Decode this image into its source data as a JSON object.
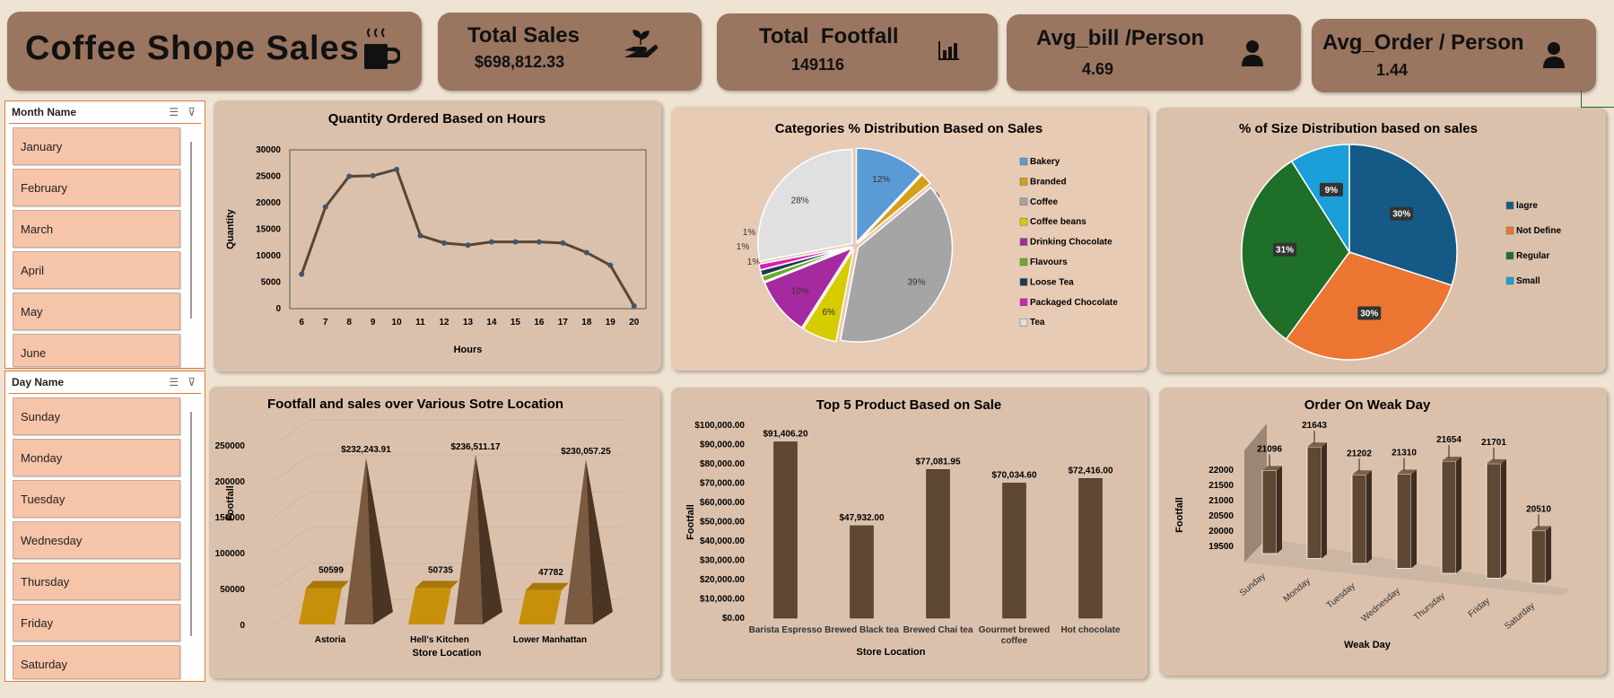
{
  "kpis": {
    "title": "Coffee Shope Sales",
    "total_sales_label": "Total Sales",
    "total_sales_value": "$698,812.33",
    "footfall_label": "Total  Footfall",
    "footfall_value": "149116",
    "avg_bill_label": "Avg_bill /Person",
    "avg_bill_value": "4.69",
    "avg_order_label": "Avg_Order / Person",
    "avg_order_value": "1.44"
  },
  "icons": {
    "title": "coffee-cup-icon",
    "sales": "hand-plant-icon",
    "footfall": "bar-chart-icon",
    "person": "person-icon"
  },
  "slicers": {
    "month": {
      "title": "Month Name",
      "items": [
        "January",
        "February",
        "March",
        "April",
        "May",
        "June"
      ]
    },
    "day": {
      "title": "Day Name",
      "items": [
        "Sunday",
        "Monday",
        "Tuesday",
        "Wednesday",
        "Thursday",
        "Friday",
        "Saturday"
      ]
    }
  },
  "colors": {
    "brown": "#5e4733",
    "gold": "#c8900a",
    "panel": "#e8cbb5"
  },
  "chart_data": [
    {
      "id": "hours",
      "type": "line",
      "title": "Quantity Ordered Based on Hours",
      "xlabel": "Hours",
      "ylabel": "Quantity",
      "x": [
        6,
        7,
        8,
        9,
        10,
        11,
        12,
        13,
        14,
        15,
        16,
        17,
        18,
        19,
        20
      ],
      "values": [
        6500,
        19200,
        25000,
        25100,
        26300,
        13800,
        12400,
        12000,
        12600,
        12600,
        12600,
        12400,
        10600,
        8200,
        500
      ],
      "ylim": [
        0,
        30000
      ],
      "yticks": [
        0,
        5000,
        10000,
        15000,
        20000,
        25000,
        30000
      ],
      "legend": "none"
    },
    {
      "id": "categories",
      "type": "pie",
      "title": "Categories % Distribution Based on Sales",
      "labels": [
        "Bakery",
        "Branded",
        "Coffee",
        "Coffee beans",
        "Drinking Chocolate",
        "Flavours",
        "Loose Tea",
        "Packaged Chocolate",
        "Tea"
      ],
      "values": [
        12,
        2,
        39,
        6,
        10,
        1,
        1,
        1,
        28
      ],
      "data_labels": [
        "12%",
        "2%",
        "39%",
        "6%",
        "10%",
        "1%",
        "1%",
        "1%",
        "28%"
      ],
      "colors": [
        "#5b9bd5",
        "#d4a017",
        "#a5a5a5",
        "#d6cc00",
        "#a52aa0",
        "#6aaa2a",
        "#1f3a4d",
        "#d61fb5",
        "#e0e0e0"
      ],
      "legend": "right"
    },
    {
      "id": "size",
      "type": "pie",
      "title": "% of Size Distribution based on sales",
      "labels": [
        "lagre",
        "Not Define",
        "Regular",
        "Small"
      ],
      "values": [
        30,
        30,
        31,
        9
      ],
      "data_labels": [
        "30%",
        "30%",
        "31%",
        "9%"
      ],
      "colors": [
        "#155a86",
        "#ec7532",
        "#1e6f27",
        "#1a9fd8"
      ],
      "legend": "right"
    },
    {
      "id": "store",
      "type": "bar",
      "title": "Footfall and sales over Various Sotre Location",
      "xlabel": "Store Location",
      "ylabel": "Footfall",
      "categories": [
        "Astoria",
        "Hell's Kitchen",
        "Lower Manhattan"
      ],
      "series": [
        {
          "values": [
            50599,
            50735,
            47782
          ],
          "labels": [
            "50599",
            "50735",
            "47782"
          ]
        },
        {
          "values": [
            232243.91,
            236511.17,
            230057.25
          ],
          "labels": [
            "$232,243.91",
            "$236,511.17",
            "$230,057.25"
          ]
        }
      ],
      "ylim": [
        0,
        250000
      ],
      "yticks": [
        0,
        50000,
        100000,
        150000,
        200000,
        250000
      ]
    },
    {
      "id": "products",
      "type": "bar",
      "title": "Top 5 Product Based on Sale",
      "xlabel": "Store Location",
      "ylabel": "Footfall",
      "categories": [
        [
          "Barista Espresso"
        ],
        [
          "Brewed Black tea"
        ],
        [
          "Brewed Chai tea"
        ],
        [
          "Gourmet brewed",
          "coffee"
        ],
        [
          "Hot chocolate"
        ]
      ],
      "values": [
        91406.2,
        47932.0,
        77081.95,
        70034.6,
        72416.0
      ],
      "labels": [
        "$91,406.20",
        "$47,932.00",
        "$77,081.95",
        "$70,034.60",
        "$72,416.00"
      ],
      "ylim": [
        0,
        100000
      ],
      "yticks": [
        "$0.00",
        "$10,000.00",
        "$20,000.00",
        "$30,000.00",
        "$40,000.00",
        "$50,000.00",
        "$60,000.00",
        "$70,000.00",
        "$80,000.00",
        "$90,000.00",
        "$100,000.00"
      ]
    },
    {
      "id": "weekday",
      "type": "bar",
      "title": "Order On Weak Day",
      "xlabel": "Weak Day",
      "ylabel": "Footfall",
      "categories": [
        "Sunday",
        "Monday",
        "Tuesday",
        "Wednesday",
        "Thursday",
        "Friday",
        "Saturday"
      ],
      "values": [
        21096,
        21643,
        21202,
        21310,
        21654,
        21701,
        20510
      ],
      "labels": [
        "21096",
        "21643",
        "21202",
        "21310",
        "21654",
        "21701",
        "20510"
      ],
      "ylim": [
        19500,
        22000
      ],
      "yticks": [
        "19500",
        "20000",
        "20500",
        "21000",
        "21500",
        "22000"
      ]
    }
  ]
}
